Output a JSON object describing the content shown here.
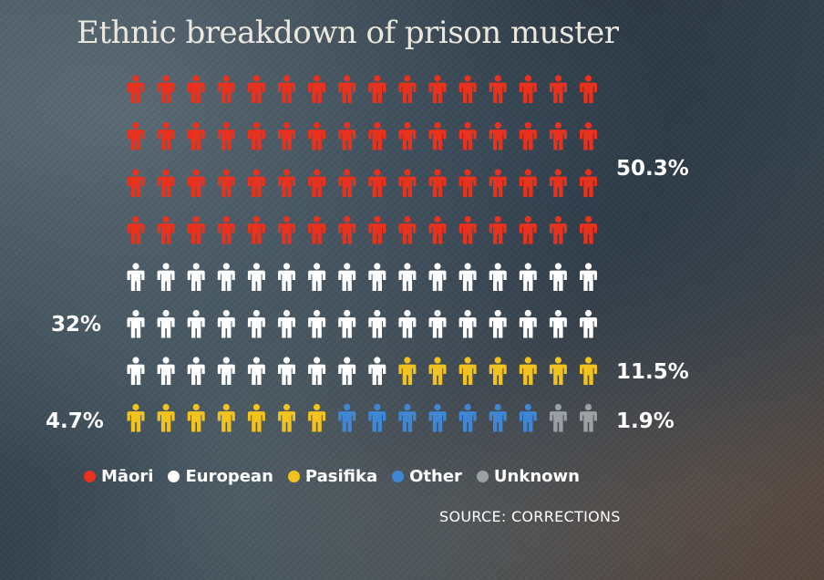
{
  "title": "Ethnic breakdown of prison muster",
  "source": "SOURCE: CORRECTIONS",
  "chart_data": {
    "type": "pictogram",
    "grid": {
      "columns": 16,
      "rows": 8,
      "units": 128
    },
    "categories": [
      "Māori",
      "European",
      "Pasifika",
      "Other",
      "Unknown"
    ],
    "series": [
      {
        "name": "Māori",
        "icon_count": 64,
        "color": "#e8321e"
      },
      {
        "name": "European",
        "icon_count": 41,
        "color": "#ffffff"
      },
      {
        "name": "Pasifika",
        "icon_count": 14,
        "color": "#f2c21f"
      },
      {
        "name": "Other",
        "icon_count": 7,
        "color": "#3f86d4"
      },
      {
        "name": "Unknown",
        "icon_count": 2,
        "color": "#9aa0a3"
      }
    ],
    "labels": [
      "50.3%",
      "32%",
      "11.5%",
      "4.7%",
      "1.9%"
    ],
    "legend_placement": "bottom"
  },
  "icons": {
    "unit": "person-icon"
  }
}
